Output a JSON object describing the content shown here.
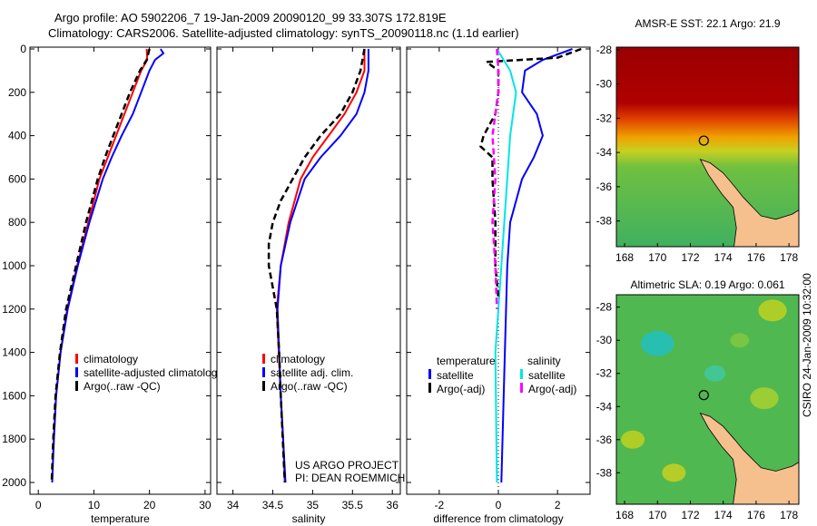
{
  "title_line1": "Argo profile: AO 5902206_7 19-Jan-2009 20090120_99 33.307S 172.819E",
  "title_line2": "Climatology: CARS2006. Satellite-adjusted climatology: synTS_20090118.nc (1.1d earlier)",
  "credit": "CSIRO 24-Jan-2009 10:32:00",
  "project_line1": "US ARGO PROJECT",
  "project_line2": "PI: DEAN ROEMMICH",
  "colors": {
    "climatology": "#ff0000",
    "satellite": "#0000ff",
    "argo": "#000000",
    "sal_satellite": "#00e5e5",
    "sal_argo": "#ff00ff",
    "land": "#f5c08e"
  },
  "chart_data": [
    {
      "type": "line",
      "xlabel": "temperature",
      "ylabel": "",
      "xlim": [
        -1.5,
        31
      ],
      "ylim": [
        2080,
        0
      ],
      "xticks": [
        "0",
        "10",
        "20",
        "30"
      ],
      "yticks": [
        "0",
        "200",
        "400",
        "600",
        "800",
        "1000",
        "1200",
        "1400",
        "1600",
        "1800",
        "2000"
      ],
      "legend": [
        "climatology",
        "satellite-adjusted climatology",
        "Argo(..raw -QC)"
      ],
      "series": [
        {
          "name": "climatology",
          "color": "#ff0000",
          "depth": [
            0,
            50,
            100,
            200,
            300,
            400,
            500,
            600,
            800,
            1000,
            1200,
            1400,
            1600,
            1860
          ],
          "values": [
            19.5,
            19.6,
            18.5,
            17,
            15.5,
            14,
            12.5,
            11,
            9,
            7,
            5.2,
            4,
            3.2,
            2.7
          ]
        },
        {
          "name": "satellite-adjusted climatology",
          "color": "#0000ff",
          "depth": [
            0,
            20,
            50,
            100,
            200,
            300,
            400,
            500,
            600,
            800,
            1000,
            1200,
            1400,
            1600,
            1800,
            2000
          ],
          "values": [
            22,
            22.5,
            21,
            20,
            18.5,
            17,
            15,
            13.2,
            11.6,
            9.2,
            7.1,
            5.3,
            4,
            3.2,
            2.8,
            2.5
          ]
        },
        {
          "name": "Argo(..raw -QC)",
          "color": "#000000",
          "dashed": true,
          "depth": [
            0,
            50,
            100,
            200,
            300,
            400,
            500,
            600,
            800,
            1000,
            1200,
            1400,
            1600,
            1800,
            2000
          ],
          "values": [
            20,
            19.5,
            18.3,
            16.5,
            15,
            13.5,
            12,
            10.7,
            8.6,
            6.8,
            5,
            3.9,
            3.1,
            2.7,
            2.4
          ]
        }
      ]
    },
    {
      "type": "line",
      "xlabel": "salinity",
      "xlim": [
        33.8,
        36.1
      ],
      "ylim": [
        2080,
        0
      ],
      "xticks": [
        "34",
        "34.5",
        "35",
        "35.5",
        "36"
      ],
      "legend": [
        "climatology",
        "satellite adj. clim.",
        "Argo(..raw -QC)"
      ],
      "series": [
        {
          "name": "climatology",
          "color": "#ff0000",
          "depth": [
            0,
            100,
            200,
            300,
            400,
            500,
            600,
            800,
            1000,
            1200,
            1600,
            1800,
            2000
          ],
          "values": [
            35.65,
            35.65,
            35.55,
            35.4,
            35.2,
            35.0,
            34.85,
            34.7,
            34.6,
            34.55,
            34.6,
            34.63,
            34.65
          ]
        },
        {
          "name": "satellite adj. clim.",
          "color": "#0000ff",
          "depth": [
            0,
            100,
            200,
            300,
            400,
            500,
            600,
            800,
            1000,
            1200,
            1600,
            2000
          ],
          "values": [
            35.7,
            35.7,
            35.65,
            35.55,
            35.35,
            35.1,
            34.9,
            34.72,
            34.6,
            34.56,
            34.6,
            34.66
          ]
        },
        {
          "name": "Argo(..raw -QC)",
          "color": "#000000",
          "dashed": true,
          "depth": [
            0,
            100,
            200,
            300,
            400,
            500,
            600,
            700,
            800,
            900,
            1000,
            1100,
            1200,
            1400,
            1600,
            2000
          ],
          "values": [
            35.65,
            35.6,
            35.5,
            35.35,
            35.1,
            34.9,
            34.75,
            34.6,
            34.5,
            34.45,
            34.45,
            34.5,
            34.55,
            34.58,
            34.6,
            34.65
          ]
        }
      ]
    },
    {
      "type": "line",
      "xlabel": "difference from climatology",
      "xlim": [
        -3.1,
        3.1
      ],
      "ylim": [
        2080,
        0
      ],
      "xticks": [
        "-2",
        "0",
        "2"
      ],
      "legend_temperature": {
        "title": "temperature",
        "items": [
          "satellite",
          "Argo(-adj)"
        ]
      },
      "legend_salinity": {
        "title": "salinity",
        "items": [
          "satellite",
          "Argo(-adj)"
        ]
      },
      "series": [
        {
          "name": "temperature satellite",
          "color": "#0000ff",
          "depth": [
            0,
            50,
            100,
            200,
            300,
            400,
            500,
            600,
            800,
            1000,
            1500,
            2000
          ],
          "values": [
            2.5,
            1.5,
            0.9,
            0.8,
            1.3,
            1.5,
            1.2,
            0.8,
            0.4,
            0.3,
            0.2,
            0.1
          ]
        },
        {
          "name": "salinity satellite",
          "color": "#00e5e5",
          "depth": [
            0,
            100,
            200,
            400,
            600,
            800,
            1000,
            1400,
            2000
          ],
          "values": [
            -0.05,
            0.4,
            0.6,
            0.4,
            0.3,
            0.2,
            0.1,
            -0.1,
            -0.05
          ]
        },
        {
          "name": "temperature Argo(-adj)",
          "color": "#000000",
          "dashed": true,
          "depth": [
            0,
            40,
            60,
            100,
            200,
            300,
            400,
            450,
            500,
            600,
            800,
            1000,
            1150
          ],
          "values": [
            2.8,
            2.0,
            -0.4,
            0,
            0,
            -0.1,
            -0.5,
            -0.6,
            -0.2,
            -0.2,
            -0.1,
            -0.1,
            0
          ]
        },
        {
          "name": "salinity Argo(-adj)",
          "color": "#ff00ff",
          "dashed": true,
          "depth": [
            0,
            100,
            200,
            400,
            600,
            800,
            1000,
            1200
          ],
          "values": [
            -0.05,
            0,
            0,
            -0.2,
            -0.1,
            -0.2,
            -0.1,
            -0.05
          ]
        }
      ]
    },
    {
      "type": "heatmap",
      "title": "AMSR-E SST: 22.1 Argo: 21.9",
      "xticks": [
        "168",
        "170",
        "172",
        "174",
        "176",
        "178"
      ],
      "yticks": [
        "-28",
        "-30",
        "-32",
        "-34",
        "-36",
        "-38"
      ],
      "profile_lon": 172.819,
      "profile_lat": -33.307
    },
    {
      "type": "heatmap",
      "title": "Altimetric SLA: 0.19 Argo: 0.061",
      "xticks": [
        "168",
        "170",
        "172",
        "174",
        "176",
        "178"
      ],
      "yticks": [
        "-28",
        "-30",
        "-32",
        "-34",
        "-36",
        "-38"
      ],
      "profile_lon": 172.819,
      "profile_lat": -33.307
    }
  ]
}
